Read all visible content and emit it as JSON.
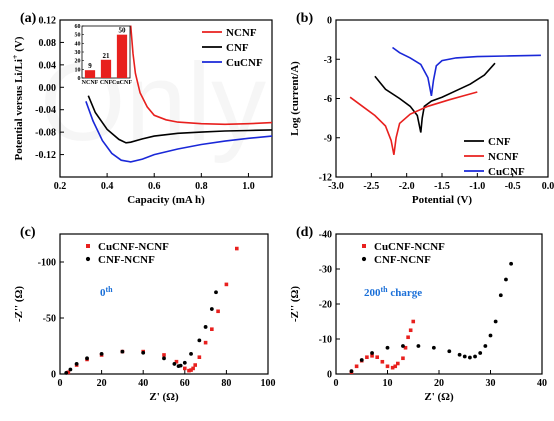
{
  "watermark": "Only",
  "chart_data": [
    {
      "panel": "(a)",
      "type": "line",
      "xlabel": "Capacity (mA h)",
      "ylabel": "Potential versus Li/Li",
      "ylabel_sup": "+",
      "ylabel_unit": " (V)",
      "xlim": [
        0.2,
        1.1
      ],
      "ylim": [
        -0.16,
        0.12
      ],
      "xticks": [
        "0.2",
        "0.4",
        "0.6",
        "0.8",
        "1.0"
      ],
      "xtick_values": [
        0.2,
        0.4,
        0.6,
        0.8,
        1.0
      ],
      "yticks": [
        "-0.12",
        "-0.08",
        "-0.04",
        "0.00",
        "0.04",
        "0.08",
        "0.12"
      ],
      "ytick_values": [
        -0.12,
        -0.08,
        -0.04,
        0.0,
        0.04,
        0.08,
        0.12
      ],
      "legend_position": "top-right",
      "series": [
        {
          "name": "NCNF",
          "color": "#e8201e",
          "x": [
            0.5,
            0.51,
            0.52,
            0.54,
            0.57,
            0.6,
            0.65,
            0.7,
            0.8,
            0.9,
            1.0,
            1.1
          ],
          "y": [
            0.11,
            0.06,
            0.025,
            -0.01,
            -0.035,
            -0.05,
            -0.058,
            -0.062,
            -0.065,
            -0.066,
            -0.065,
            -0.063
          ]
        },
        {
          "name": "CNF",
          "color": "#000000",
          "x": [
            0.32,
            0.35,
            0.4,
            0.45,
            0.48,
            0.5,
            0.55,
            0.6,
            0.7,
            0.8,
            0.9,
            1.0,
            1.1
          ],
          "y": [
            -0.015,
            -0.045,
            -0.075,
            -0.093,
            -0.099,
            -0.098,
            -0.092,
            -0.087,
            -0.082,
            -0.08,
            -0.078,
            -0.077,
            -0.076
          ]
        },
        {
          "name": "CuCNF",
          "color": "#1a28d8",
          "x": [
            0.31,
            0.34,
            0.38,
            0.42,
            0.46,
            0.5,
            0.55,
            0.6,
            0.7,
            0.8,
            0.9,
            1.0,
            1.1
          ],
          "y": [
            -0.025,
            -0.06,
            -0.095,
            -0.118,
            -0.13,
            -0.133,
            -0.128,
            -0.12,
            -0.11,
            -0.102,
            -0.096,
            -0.091,
            -0.087
          ]
        }
      ],
      "inset": {
        "type": "bar",
        "categories": [
          "NCNF",
          "CNF",
          "CuCNF"
        ],
        "values": [
          9,
          21,
          50
        ],
        "value_labels": [
          "9",
          "21",
          "50"
        ],
        "ylim": [
          0,
          60
        ],
        "yticks": [
          "0",
          "10",
          "20",
          "30",
          "40",
          "50",
          "60"
        ],
        "ytick_values": [
          0,
          10,
          20,
          30,
          40,
          50,
          60
        ],
        "bar_color": "#e8201e"
      }
    },
    {
      "panel": "(b)",
      "type": "line",
      "xlabel": "Potential (V)",
      "ylabel": "Log (current/A)",
      "xlim": [
        -3.0,
        0.0
      ],
      "ylim": [
        -12,
        0
      ],
      "xticks": [
        "-3.0",
        "-2.5",
        "-2.0",
        "-1.5",
        "-1.0",
        "-0.5",
        "0.0"
      ],
      "xtick_values": [
        -3.0,
        -2.5,
        -2.0,
        -1.5,
        -1.0,
        -0.5,
        0.0
      ],
      "yticks": [
        "-12",
        "-9",
        "-6",
        "-3",
        "0"
      ],
      "ytick_values": [
        -12,
        -9,
        -6,
        -3,
        0
      ],
      "legend_position": "bottom-right",
      "series": [
        {
          "name": "CNF",
          "color": "#000000",
          "x": [
            -2.45,
            -2.3,
            -2.1,
            -1.95,
            -1.85,
            -1.8,
            -1.78,
            -1.75,
            -1.65,
            -1.5,
            -1.3,
            -1.1,
            -0.9,
            -0.75
          ],
          "y": [
            -4.3,
            -5.3,
            -6.0,
            -6.6,
            -7.3,
            -8.6,
            -7.5,
            -6.6,
            -6.2,
            -5.9,
            -5.4,
            -4.9,
            -4.2,
            -3.3
          ]
        },
        {
          "name": "NCNF",
          "color": "#e8201e",
          "x": [
            -2.8,
            -2.6,
            -2.45,
            -2.3,
            -2.22,
            -2.18,
            -2.15,
            -2.1,
            -1.95,
            -1.7,
            -1.4,
            -1.2,
            -1.0
          ],
          "y": [
            -5.9,
            -6.7,
            -7.3,
            -8.1,
            -9.2,
            -10.3,
            -9.0,
            -7.9,
            -7.2,
            -6.6,
            -6.1,
            -5.8,
            -5.5
          ]
        },
        {
          "name": "CuCNF",
          "color": "#1a28d8",
          "x": [
            -2.2,
            -2.1,
            -1.95,
            -1.8,
            -1.7,
            -1.65,
            -1.62,
            -1.58,
            -1.5,
            -1.3,
            -1.0,
            -0.6,
            -0.1
          ],
          "y": [
            -2.1,
            -2.5,
            -2.9,
            -3.4,
            -4.4,
            -5.8,
            -4.6,
            -3.5,
            -3.1,
            -2.9,
            -2.8,
            -2.75,
            -2.7
          ]
        }
      ]
    },
    {
      "panel": "(c)",
      "type": "scatter",
      "xlabel": "Z' (Ω)",
      "ylabel": "-Z'' (Ω)",
      "annotation": "0",
      "annotation_sup": "th",
      "annotation_color": "#1a6fd8",
      "xlim": [
        0,
        100
      ],
      "ylim": [
        0,
        -125
      ],
      "xticks": [
        "0",
        "20",
        "40",
        "60",
        "80",
        "100"
      ],
      "xtick_values": [
        0,
        20,
        40,
        60,
        80,
        100
      ],
      "yticks": [
        "0",
        "-50",
        "-100"
      ],
      "ytick_values": [
        0,
        -50,
        -100
      ],
      "legend_position": "top-left",
      "series": [
        {
          "name": "CuCNF-NCNF",
          "color": "#e8201e",
          "marker": "square",
          "x": [
            4,
            8,
            13,
            20,
            30,
            40,
            50,
            56,
            60,
            62,
            63,
            64,
            65,
            67,
            70,
            73,
            76,
            80,
            85
          ],
          "y": [
            -1.5,
            -8,
            -13,
            -17,
            -20,
            -20,
            -17,
            -11,
            -5,
            -3,
            -3.5,
            -5,
            -8,
            -15,
            -28,
            -40,
            -56,
            -80,
            -112
          ]
        },
        {
          "name": "CNF-NCNF",
          "color": "#000000",
          "marker": "circle",
          "x": [
            3,
            5,
            8,
            13,
            20,
            30,
            40,
            50,
            55,
            57,
            58,
            60,
            63,
            67,
            70,
            73,
            75
          ],
          "y": [
            -1,
            -4,
            -9,
            -14,
            -18,
            -20,
            -19,
            -14,
            -9,
            -7,
            -7.5,
            -10,
            -18,
            -30,
            -42,
            -58,
            -73
          ]
        }
      ]
    },
    {
      "panel": "(d)",
      "type": "scatter",
      "xlabel": "Z' (Ω)",
      "ylabel": "-Z'' (Ω)",
      "annotation": "200",
      "annotation_sup": "th",
      "annotation_suffix": " charge",
      "annotation_color": "#1a6fd8",
      "xlim": [
        0,
        40
      ],
      "ylim": [
        0,
        -40
      ],
      "xticks": [
        "0",
        "10",
        "20",
        "30",
        "40"
      ],
      "xtick_values": [
        0,
        10,
        20,
        30,
        40
      ],
      "yticks": [
        "0",
        "-10",
        "-20",
        "-30",
        "-40"
      ],
      "ytick_values": [
        0,
        -10,
        -20,
        -30,
        -40
      ],
      "legend_position": "top-left",
      "series": [
        {
          "name": "CuCNF-NCNF",
          "color": "#e8201e",
          "marker": "square",
          "x": [
            3,
            4,
            5,
            6,
            7,
            8,
            9,
            10,
            11,
            11.5,
            12,
            13,
            13.5,
            14,
            14.5,
            15
          ],
          "y": [
            -0.5,
            -2.2,
            -3.8,
            -4.8,
            -5.2,
            -4.8,
            -3.5,
            -2.2,
            -1.8,
            -2.2,
            -3,
            -4.5,
            -7.5,
            -10.5,
            -12.5,
            -15
          ]
        },
        {
          "name": "CNF-NCNF",
          "color": "#000000",
          "marker": "circle",
          "x": [
            3,
            5,
            7,
            10,
            13,
            16,
            19,
            22,
            24,
            25,
            26,
            27,
            28,
            29,
            30,
            31,
            32,
            33,
            34
          ],
          "y": [
            -0.8,
            -4,
            -6,
            -7.5,
            -8,
            -8,
            -7.5,
            -6.5,
            -5.5,
            -5,
            -4.7,
            -5,
            -6,
            -8,
            -11,
            -15,
            -22.5,
            -27,
            -31.5
          ]
        }
      ]
    }
  ]
}
